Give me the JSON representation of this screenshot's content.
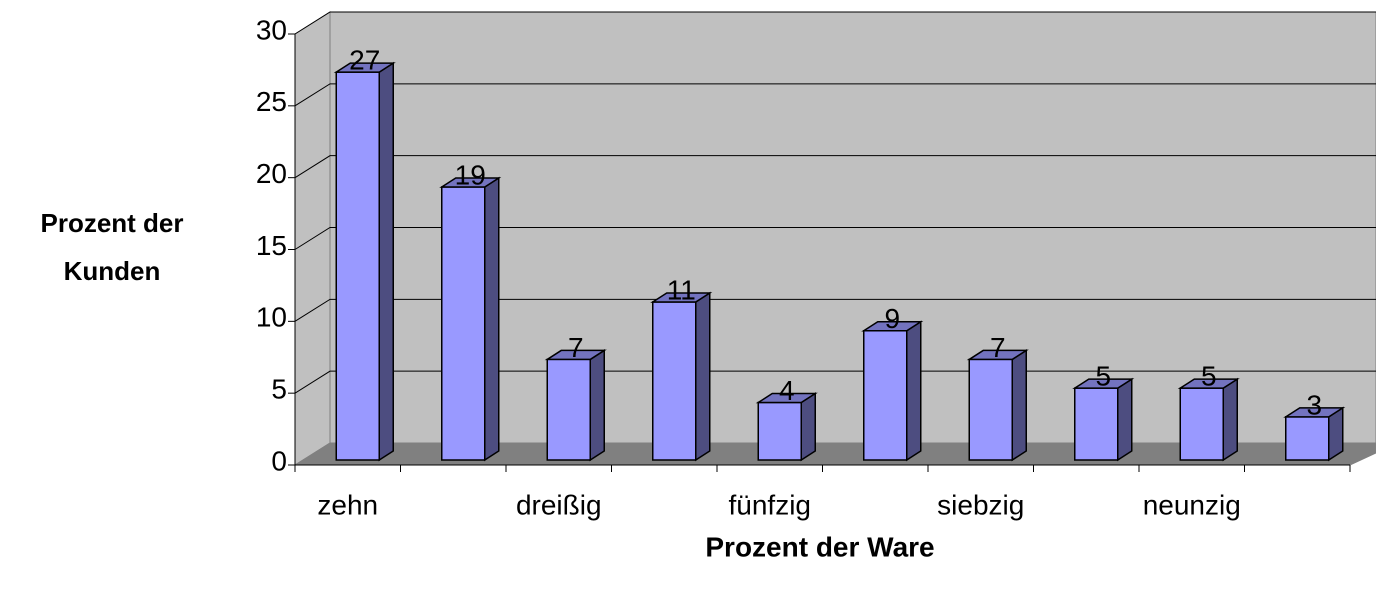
{
  "chart_data": {
    "type": "bar3d",
    "x_label": "Prozent der Ware",
    "y_label": [
      "Prozent der",
      "Kunden"
    ],
    "categories": [
      "zehn",
      null,
      "dreißig",
      null,
      "fünfzig",
      null,
      "siebzig",
      null,
      "neunzig",
      null
    ],
    "values": [
      27,
      19,
      7,
      11,
      4,
      9,
      7,
      5,
      5,
      3
    ],
    "color": "#9999ff",
    "ylim": [
      0,
      30
    ],
    "yticks": [
      0,
      5,
      10,
      15,
      20,
      25,
      30
    ],
    "grid": true
  }
}
